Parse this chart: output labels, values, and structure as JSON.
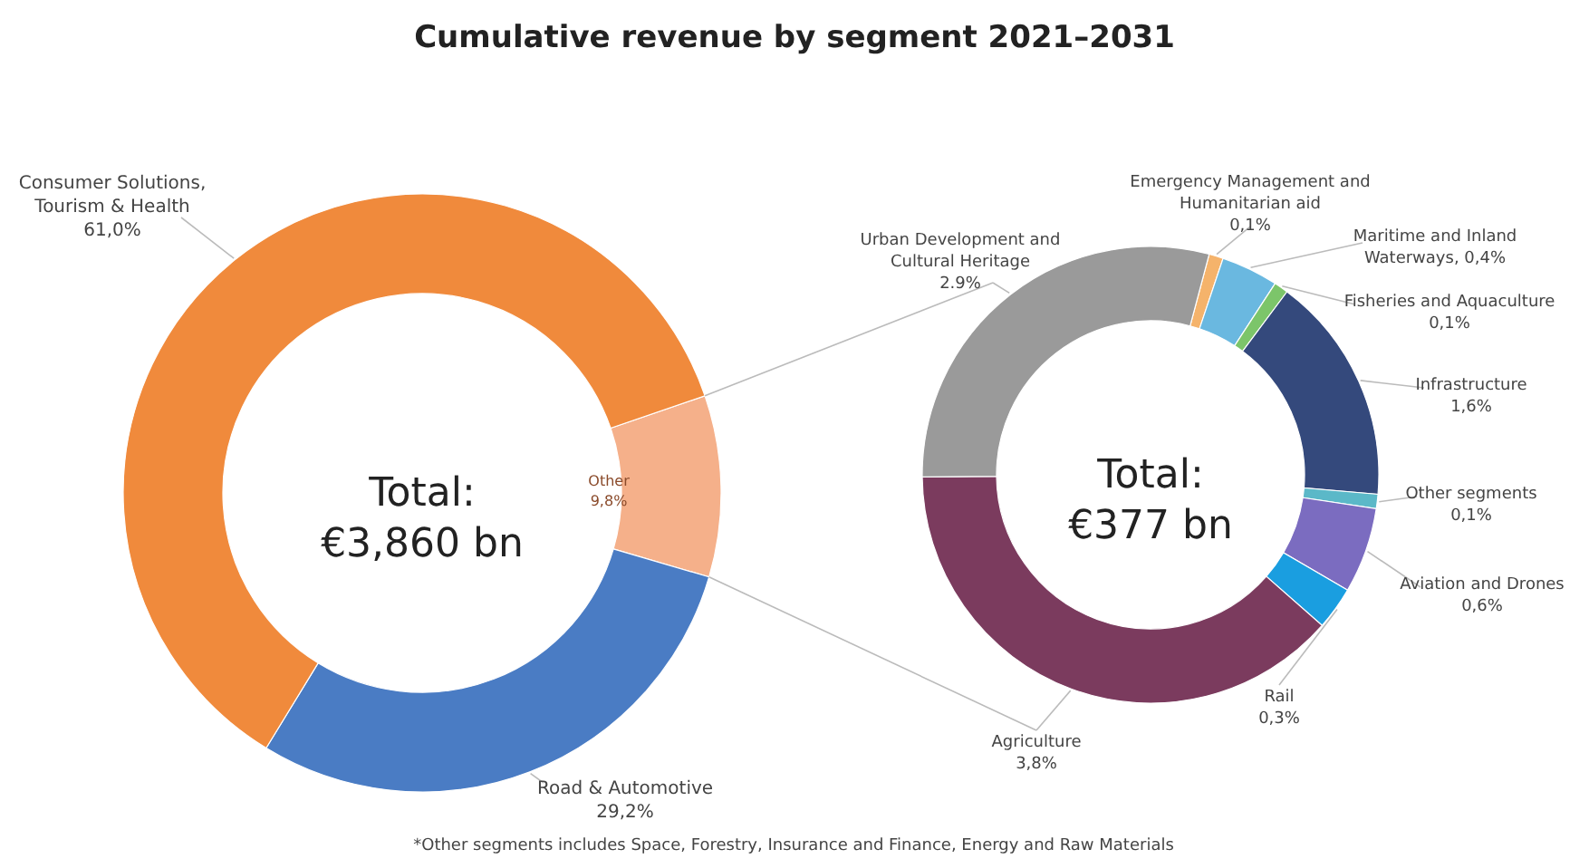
{
  "chart_data": [
    {
      "type": "donut",
      "title": "Cumulative revenue by segment 2021–2031",
      "categories": [
        "Other",
        "Road & Automotive",
        "Consumer Solutions, Tourism & Health"
      ],
      "values": [
        9.8,
        29.2,
        61.0
      ],
      "value_labels": [
        "9,8%",
        "29,2%",
        "61,0%"
      ],
      "colors": [
        "#f5b08a",
        "#4a7cc4",
        "#f08a3c"
      ],
      "annotations": [
        "Total:",
        "€3,860 bn",
        "*Other segments includes Space, Forestry, Insurance and Finance, Energy and Raw Materials"
      ]
    },
    {
      "type": "donut",
      "categories": [
        "Emergency Management and Humanitarian aid",
        "Maritime and Inland Waterways",
        "Fisheries and Aquaculture",
        "Infrastructure",
        "Other segments",
        "Aviation and Drones",
        "Rail",
        "Agriculture",
        "Urban Development and Cultural Heritage"
      ],
      "values": [
        0.1,
        0.4,
        0.1,
        1.6,
        0.1,
        0.6,
        0.3,
        3.8,
        2.9
      ],
      "value_labels": [
        "0,1%",
        "0,4%",
        "0,1%",
        "1,6%",
        "0,1%",
        "0,6%",
        "0,3%",
        "3,8%",
        "2.9%"
      ],
      "colors": [
        "#f5b36b",
        "#6ab8e0",
        "#7cc56a",
        "#34497c",
        "#5bb8c8",
        "#7b6cc0",
        "#1a9ee0",
        "#7b3b5e",
        "#9a9a9a"
      ],
      "annotations": [
        "Total:",
        "€377 bn"
      ]
    }
  ]
}
